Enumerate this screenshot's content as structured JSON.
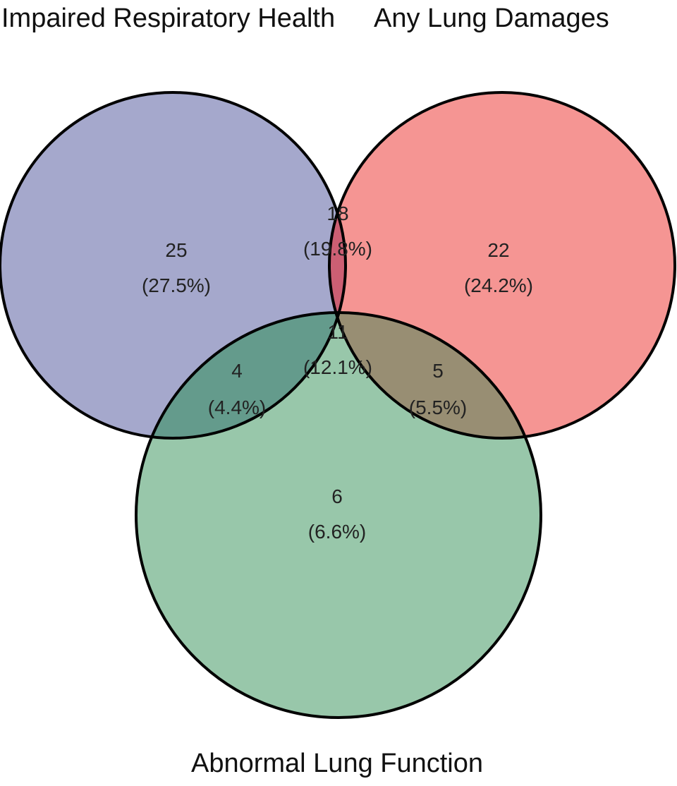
{
  "diagram": {
    "type": "venn-3",
    "sets": [
      {
        "key": "irh",
        "label": "Impaired Respiratory Health",
        "color": "#a5a8cc"
      },
      {
        "key": "ald",
        "label": "Any Lung Damages",
        "color": "#f59593"
      },
      {
        "key": "alf",
        "label": "Abnormal Lung Function",
        "color": "#98c7aa"
      }
    ],
    "regions": {
      "irh_only": {
        "count": "25",
        "pct": "(27.5%)"
      },
      "irh_ald": {
        "count": "18",
        "pct": "(19.8%)"
      },
      "ald_only": {
        "count": "22",
        "pct": "(24.2%)"
      },
      "all_three": {
        "count": "11",
        "pct": "(12.1%)"
      },
      "irh_alf": {
        "count": "4",
        "pct": "(4.4%)"
      },
      "ald_alf": {
        "count": "5",
        "pct": "(5.5%)"
      },
      "alf_only": {
        "count": "6",
        "pct": "(6.6%)"
      }
    },
    "overlap_colors": {
      "irh_ald": "#cc5f73",
      "irh_alf": "#649b8c",
      "ald_alf": "#988e73",
      "all_three": "#7d7766"
    }
  }
}
